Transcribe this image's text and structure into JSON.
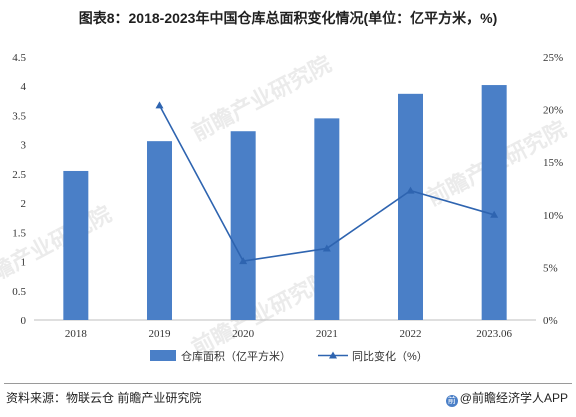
{
  "title": "图表8：2018-2023年中国仓库总面积变化情况(单位：亿平方米，%)",
  "watermark": "前瞻产业研究院",
  "footer": {
    "source": "资料来源：物联云仓 前瞻产业研究院",
    "credit": "@前瞻经济学人APP"
  },
  "chart_data": {
    "type": "bar",
    "categories": [
      "2018",
      "2019",
      "2020",
      "2021",
      "2022",
      "2023.06"
    ],
    "series": [
      {
        "name": "仓库面积（亿平方米）",
        "type": "bar",
        "axis": "left",
        "color": "#4a7fc7",
        "values": [
          2.55,
          3.06,
          3.23,
          3.45,
          3.87,
          4.02
        ]
      },
      {
        "name": "同比变化（%）",
        "type": "line",
        "axis": "right",
        "marker": "triangle",
        "color": "#2e64b0",
        "values": [
          null,
          20.4,
          5.6,
          6.8,
          12.3,
          10.0
        ]
      }
    ],
    "y_left": {
      "ylim": [
        0,
        4.5
      ],
      "ticks": [
        "0",
        "0.5",
        "1",
        "1.5",
        "2",
        "2.5",
        "3",
        "3.5",
        "4",
        "4.5"
      ]
    },
    "y_right": {
      "ylim": [
        0,
        25
      ],
      "ticks": [
        "0%",
        "5%",
        "10%",
        "15%",
        "20%",
        "25%"
      ]
    },
    "legend": "bottom",
    "grid": false
  }
}
